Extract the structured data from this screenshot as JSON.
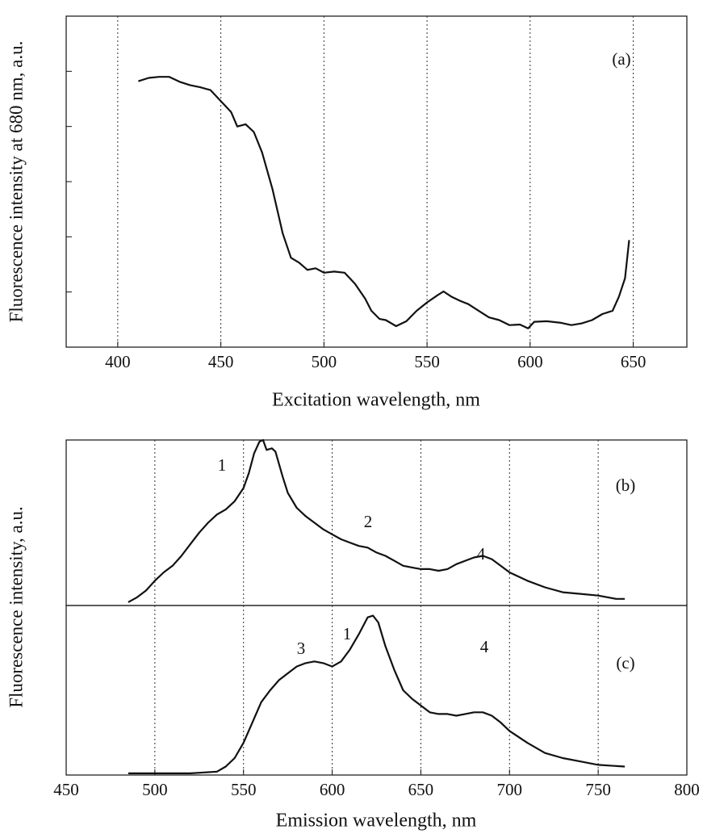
{
  "chart_data": [
    {
      "type": "line",
      "panel_label": "(a)",
      "x_label": "Excitation wavelength, nm",
      "y_label": "Fluorescence intensity at 680 nm, a.u.",
      "color": "#111111",
      "grid": true,
      "xlim": [
        375,
        676
      ],
      "xticks": [
        400,
        450,
        500,
        550,
        600,
        650
      ],
      "ylim": [
        0,
        6
      ],
      "yticks": [
        1,
        2,
        3,
        4,
        5
      ],
      "x": [
        410,
        415,
        420,
        425,
        430,
        435,
        440,
        445,
        450,
        455,
        458,
        462,
        466,
        470,
        475,
        480,
        484,
        488,
        492,
        496,
        500,
        505,
        510,
        515,
        520,
        523,
        527,
        530,
        535,
        540,
        545,
        550,
        555,
        558,
        562,
        566,
        570,
        575,
        580,
        585,
        590,
        595,
        599,
        602,
        608,
        615,
        620,
        625,
        630,
        635,
        640,
        643,
        646,
        648
      ],
      "values": [
        4.82,
        4.88,
        4.9,
        4.9,
        4.81,
        4.75,
        4.71,
        4.66,
        4.46,
        4.26,
        4.0,
        4.04,
        3.9,
        3.53,
        2.87,
        2.06,
        1.62,
        1.53,
        1.4,
        1.43,
        1.35,
        1.37,
        1.35,
        1.15,
        0.88,
        0.66,
        0.51,
        0.49,
        0.38,
        0.47,
        0.66,
        0.81,
        0.94,
        1.01,
        0.91,
        0.84,
        0.78,
        0.66,
        0.54,
        0.49,
        0.4,
        0.41,
        0.34,
        0.46,
        0.47,
        0.44,
        0.4,
        0.43,
        0.49,
        0.6,
        0.66,
        0.91,
        1.25,
        1.94
      ]
    },
    {
      "type": "line",
      "panel_label": "(b)",
      "y_label": "Fluorescence intensity, a.u.",
      "color": "#111111",
      "grid": true,
      "annotations": [
        "1",
        "2",
        "4"
      ],
      "xlim": [
        450,
        800
      ],
      "xticks": [
        450,
        500,
        550,
        600,
        650,
        700,
        750,
        800
      ],
      "ylim": [
        0,
        1
      ],
      "x": [
        485,
        490,
        495,
        500,
        505,
        510,
        515,
        520,
        525,
        530,
        535,
        540,
        545,
        550,
        553,
        556,
        559,
        561,
        563,
        566,
        568,
        572,
        575,
        580,
        585,
        590,
        595,
        600,
        605,
        610,
        615,
        620,
        625,
        630,
        635,
        640,
        645,
        650,
        655,
        660,
        665,
        670,
        675,
        680,
        685,
        690,
        695,
        700,
        710,
        720,
        730,
        740,
        750,
        760,
        765
      ],
      "values": [
        0.02,
        0.05,
        0.09,
        0.15,
        0.2,
        0.24,
        0.3,
        0.37,
        0.44,
        0.5,
        0.55,
        0.58,
        0.63,
        0.71,
        0.8,
        0.92,
        0.99,
        1.0,
        0.94,
        0.95,
        0.93,
        0.78,
        0.68,
        0.59,
        0.54,
        0.5,
        0.46,
        0.43,
        0.4,
        0.38,
        0.36,
        0.35,
        0.32,
        0.3,
        0.27,
        0.24,
        0.23,
        0.22,
        0.22,
        0.21,
        0.22,
        0.25,
        0.27,
        0.29,
        0.3,
        0.28,
        0.24,
        0.2,
        0.15,
        0.11,
        0.08,
        0.07,
        0.06,
        0.04,
        0.04
      ]
    },
    {
      "type": "line",
      "panel_label": "(c)",
      "x_label": "Emission wavelength, nm",
      "color": "#111111",
      "grid": true,
      "annotations": [
        "3",
        "1",
        "4"
      ],
      "xlim": [
        450,
        800
      ],
      "xticks": [
        450,
        500,
        550,
        600,
        650,
        700,
        750,
        800
      ],
      "ylim": [
        0,
        1
      ],
      "x": [
        485,
        520,
        535,
        540,
        545,
        550,
        555,
        560,
        565,
        570,
        575,
        580,
        585,
        590,
        595,
        600,
        605,
        610,
        615,
        620,
        623,
        626,
        630,
        635,
        640,
        645,
        650,
        655,
        660,
        665,
        670,
        675,
        680,
        685,
        690,
        695,
        700,
        710,
        720,
        730,
        740,
        750,
        765
      ],
      "values": [
        0.01,
        0.01,
        0.02,
        0.05,
        0.1,
        0.19,
        0.31,
        0.43,
        0.5,
        0.56,
        0.6,
        0.64,
        0.66,
        0.67,
        0.66,
        0.64,
        0.67,
        0.74,
        0.83,
        0.93,
        0.94,
        0.9,
        0.76,
        0.62,
        0.5,
        0.45,
        0.41,
        0.37,
        0.36,
        0.36,
        0.35,
        0.36,
        0.37,
        0.37,
        0.35,
        0.31,
        0.26,
        0.19,
        0.13,
        0.1,
        0.08,
        0.06,
        0.05
      ]
    }
  ]
}
